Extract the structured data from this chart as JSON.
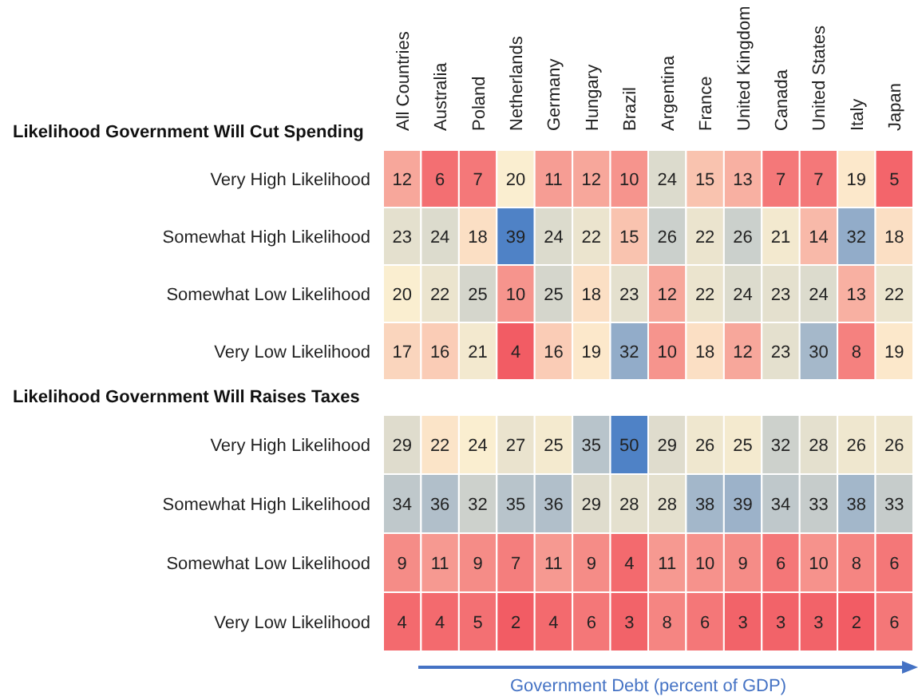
{
  "chart_data": [
    {
      "type": "heatmap",
      "title": "Likelihood Government Will Cut Spending",
      "categories": [
        "All Countries",
        "Australia",
        "Poland",
        "Netherlands",
        "Germany",
        "Hungary",
        "Brazil",
        "Argentina",
        "France",
        "United Kingdom",
        "Canada",
        "United States",
        "Italy",
        "Japan"
      ],
      "y_categories": [
        "Very High Likelihood",
        "Somewhat High Likelihood",
        "Somewhat Low Likelihood",
        "Very Low Likelihood"
      ],
      "cells": [
        [
          12,
          6,
          7,
          20,
          11,
          12,
          10,
          24,
          15,
          13,
          7,
          7,
          19,
          5
        ],
        [
          23,
          24,
          18,
          39,
          24,
          22,
          15,
          26,
          22,
          26,
          21,
          14,
          32,
          18
        ],
        [
          20,
          22,
          25,
          10,
          25,
          18,
          23,
          12,
          22,
          24,
          23,
          24,
          13,
          22
        ],
        [
          17,
          16,
          21,
          4,
          16,
          19,
          32,
          10,
          18,
          12,
          23,
          30,
          8,
          19
        ]
      ],
      "data_labels": true
    },
    {
      "type": "heatmap",
      "title": "Likelihood Government Will Raises Taxes",
      "xlabel": "Government Debt (percent of GDP)",
      "categories": [
        null,
        null,
        null,
        null,
        null,
        null,
        null,
        null,
        null,
        null,
        null,
        null,
        null,
        null
      ],
      "y_categories": [
        "Very High Likelihood",
        "Somewhat High Likelihood",
        "Somewhat Low Likelihood",
        "Very Low Likelihood"
      ],
      "cells": [
        [
          29,
          22,
          24,
          27,
          25,
          35,
          50,
          29,
          26,
          25,
          32,
          28,
          26,
          26
        ],
        [
          34,
          36,
          32,
          35,
          36,
          29,
          28,
          28,
          38,
          39,
          34,
          33,
          38,
          33
        ],
        [
          9,
          11,
          9,
          7,
          11,
          9,
          4,
          11,
          10,
          9,
          6,
          10,
          8,
          6
        ],
        [
          4,
          4,
          5,
          2,
          4,
          6,
          3,
          8,
          6,
          3,
          3,
          3,
          2,
          6
        ]
      ],
      "data_labels": true,
      "tick_labels": "y"
    }
  ]
}
